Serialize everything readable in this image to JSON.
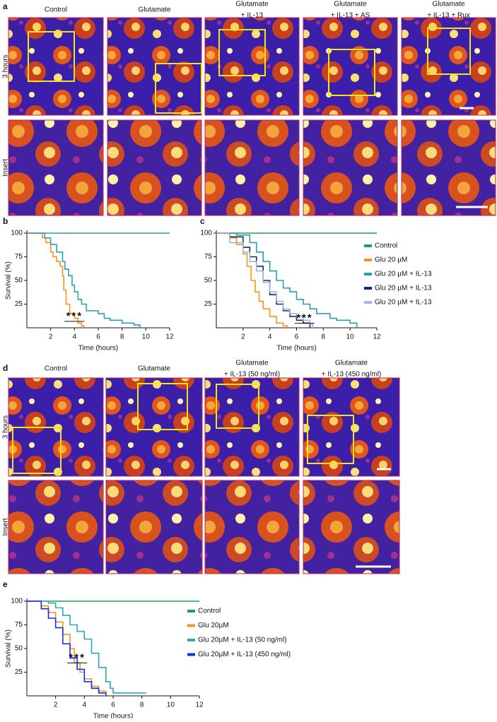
{
  "panels": {
    "a": {
      "letter": "a",
      "rows": [
        "3 hours",
        "Insert"
      ],
      "columns": [
        [
          "Control"
        ],
        [
          "Glutamate"
        ],
        [
          "Glutamate",
          "+ IL-13"
        ],
        [
          "Glutamate",
          "+ IL-13 + AS"
        ],
        [
          "Glutamate",
          "+ IL-13 + Rux"
        ]
      ]
    },
    "d": {
      "letter": "d",
      "rows": [
        "3 hours",
        "Insert"
      ],
      "columns": [
        [
          "Control"
        ],
        [
          "Glutamate"
        ],
        [
          "Glutamate",
          "+ IL-13 (50 ng/ml)"
        ],
        [
          "Glutamate",
          "+ IL-13 (450 ng/ml)"
        ]
      ]
    }
  },
  "chart_data": [
    {
      "type": "step",
      "panel": "b",
      "ylabel": "Survival (%)",
      "xlabel": "Time (hours)",
      "annotation": "***",
      "xlim": [
        0,
        12
      ],
      "xticks": [
        2,
        4,
        6,
        8,
        10,
        12
      ],
      "ylim": [
        0,
        100
      ],
      "yticks": [
        25,
        50,
        75,
        100
      ],
      "series": [
        {
          "color": "#2aa3b0",
          "x": [
            0,
            12
          ],
          "values": [
            100,
            100
          ]
        },
        {
          "color": "#f7931e",
          "x": [
            0,
            1,
            1.3,
            1.6,
            2,
            2.2,
            2.5,
            2.8,
            3,
            3.1,
            3.3,
            3.6,
            4,
            4.3,
            4.6,
            4.8
          ],
          "values": [
            100,
            100,
            95,
            90,
            80,
            75,
            70,
            65,
            55,
            40,
            25,
            15,
            10,
            5,
            2,
            0
          ]
        },
        {
          "color": "#2aa3b0",
          "x": [
            0,
            1,
            1.5,
            2,
            2.5,
            3,
            3.2,
            3.5,
            3.8,
            4,
            4.3,
            4.6,
            5,
            6,
            6.5,
            7,
            8,
            9,
            9.5
          ],
          "values": [
            100,
            100,
            95,
            88,
            80,
            70,
            62,
            55,
            45,
            38,
            30,
            25,
            18,
            15,
            10,
            8,
            5,
            3,
            0
          ]
        }
      ]
    },
    {
      "type": "step",
      "panel": "c",
      "xlabel": "Time (hours)",
      "annotation": "***",
      "xlim": [
        0,
        12
      ],
      "xticks": [
        2,
        4,
        6,
        8,
        10,
        12
      ],
      "ylim": [
        0,
        100
      ],
      "yticks": [
        25,
        50,
        75,
        100
      ],
      "series": [
        {
          "name": "Control",
          "color": "#16a84a",
          "x": [
            0,
            12
          ],
          "values": [
            100,
            100
          ]
        },
        {
          "name": "Glu 20 µM",
          "color": "#f7931e",
          "x": [
            0,
            1,
            1.5,
            2,
            2.3,
            2.6,
            2.9,
            3.2,
            3.5,
            4,
            4.5,
            5,
            5.3
          ],
          "values": [
            100,
            95,
            88,
            78,
            65,
            50,
            38,
            28,
            20,
            12,
            5,
            2,
            0
          ]
        },
        {
          "name": "Glu 20 µM + IL-13",
          "color": "#2a9fae",
          "x": [
            0,
            1.5,
            2.5,
            3,
            3.5,
            4,
            4.5,
            5,
            5.5,
            6,
            6.5,
            7,
            7.5,
            8.5,
            9,
            10,
            10.5
          ],
          "values": [
            100,
            98,
            90,
            80,
            70,
            60,
            50,
            42,
            38,
            30,
            25,
            20,
            15,
            10,
            8,
            5,
            0
          ]
        },
        {
          "name": "Glu 20 µM + IL-13",
          "color": "#1b2a5e",
          "x": [
            0,
            1,
            2,
            2.5,
            3,
            3.5,
            4,
            4.5,
            5,
            5.5,
            6,
            6.5,
            7
          ],
          "values": [
            100,
            96,
            85,
            75,
            65,
            50,
            35,
            25,
            18,
            12,
            8,
            5,
            0
          ]
        },
        {
          "name": "Glu 20 µM + IL-13",
          "color": "#9bb8e0",
          "x": [
            0,
            1,
            2,
            2.5,
            3,
            3.5,
            4,
            4.5,
            5,
            5.5,
            6,
            6.5,
            7,
            7.2
          ],
          "values": [
            100,
            90,
            80,
            70,
            60,
            48,
            38,
            28,
            20,
            15,
            12,
            8,
            4,
            0
          ]
        }
      ]
    },
    {
      "type": "step",
      "panel": "e",
      "ylabel": "Survival (%)",
      "xlabel": "Time (hours)",
      "annotation": "***",
      "xlim": [
        0,
        12
      ],
      "xticks": [
        2,
        4,
        6,
        8,
        10,
        12
      ],
      "ylim": [
        0,
        100
      ],
      "yticks": [
        25,
        50,
        75,
        100
      ],
      "series": [
        {
          "name": "Control",
          "color": "#16a84a",
          "x": [
            0,
            12
          ],
          "values": [
            100,
            100
          ]
        },
        {
          "name": "Glu 20µM",
          "color": "#f7931e",
          "x": [
            0,
            1,
            1.5,
            2,
            2.5,
            3,
            3.3,
            3.7,
            4,
            4.5,
            5,
            5.5
          ],
          "values": [
            100,
            95,
            88,
            78,
            65,
            50,
            35,
            25,
            18,
            10,
            5,
            0
          ]
        },
        {
          "name": "Glu 20µM + IL-13 (50 ng/ml)",
          "color": "#2ca9b7",
          "x": [
            0,
            1.5,
            2,
            2.5,
            3,
            3.5,
            4,
            4.5,
            5,
            5.5,
            5.8,
            6,
            8.3
          ],
          "values": [
            100,
            98,
            93,
            85,
            75,
            68,
            60,
            45,
            30,
            15,
            8,
            3,
            3
          ]
        },
        {
          "name": "Glu 20µM + IL-13 (450 ng/ml)",
          "color": "#1a2ee6",
          "x": [
            0,
            1,
            1.5,
            2,
            2.5,
            3,
            3.5,
            4,
            4.5,
            5,
            5.5
          ],
          "values": [
            100,
            92,
            82,
            72,
            55,
            40,
            28,
            15,
            8,
            3,
            0
          ]
        }
      ]
    }
  ]
}
